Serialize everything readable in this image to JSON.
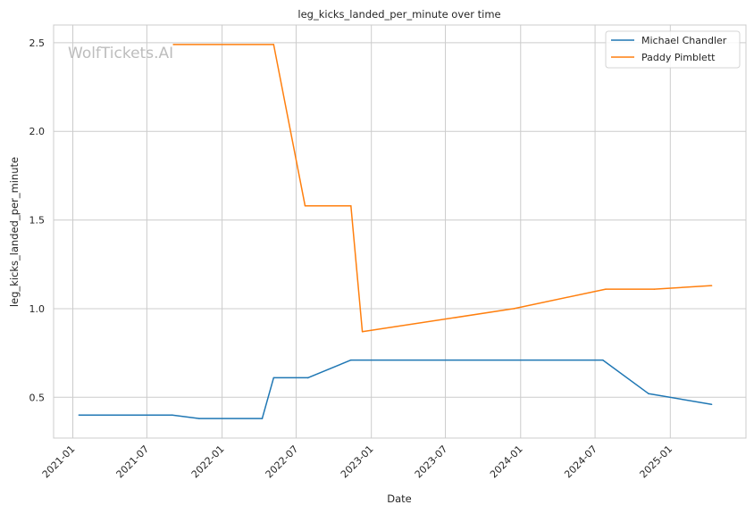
{
  "watermark": "WolfTickets.AI",
  "chart_data": {
    "type": "line",
    "title": "leg_kicks_landed_per_minute over time",
    "xlabel": "Date",
    "ylabel": "leg_kicks_landed_per_minute",
    "x_ticks": [
      "2021-01",
      "2021-07",
      "2022-01",
      "2022-07",
      "2023-01",
      "2023-07",
      "2024-01",
      "2024-07",
      "2025-01"
    ],
    "y_ticks": [
      "0.5",
      "1.0",
      "1.5",
      "2.0",
      "2.5"
    ],
    "xlim": [
      "2020-11-15",
      "2025-07-05"
    ],
    "ylim": [
      0.27,
      2.6
    ],
    "grid": true,
    "legend_position": "top-right",
    "colors": {
      "Michael Chandler": "#1f77b4",
      "Paddy Pimblett": "#ff7f0e"
    },
    "series": [
      {
        "name": "Michael Chandler",
        "x": [
          "2021-01-16",
          "2021-09-01",
          "2021-11-06",
          "2022-04-09",
          "2022-05-07",
          "2022-07-30",
          "2022-11-12",
          "2024-07-20",
          "2024-11-09",
          "2025-04-12"
        ],
        "y": [
          0.4,
          0.4,
          0.38,
          0.38,
          0.61,
          0.61,
          0.71,
          0.71,
          0.52,
          0.46
        ]
      },
      {
        "name": "Paddy Pimblett",
        "x": [
          "2021-09-04",
          "2022-05-07",
          "2022-07-23",
          "2022-11-12",
          "2022-12-10",
          "2023-12-16",
          "2024-07-27",
          "2024-11-23",
          "2025-04-12"
        ],
        "y": [
          2.49,
          2.49,
          1.58,
          1.58,
          0.87,
          1.0,
          1.11,
          1.11,
          1.13
        ]
      }
    ]
  }
}
